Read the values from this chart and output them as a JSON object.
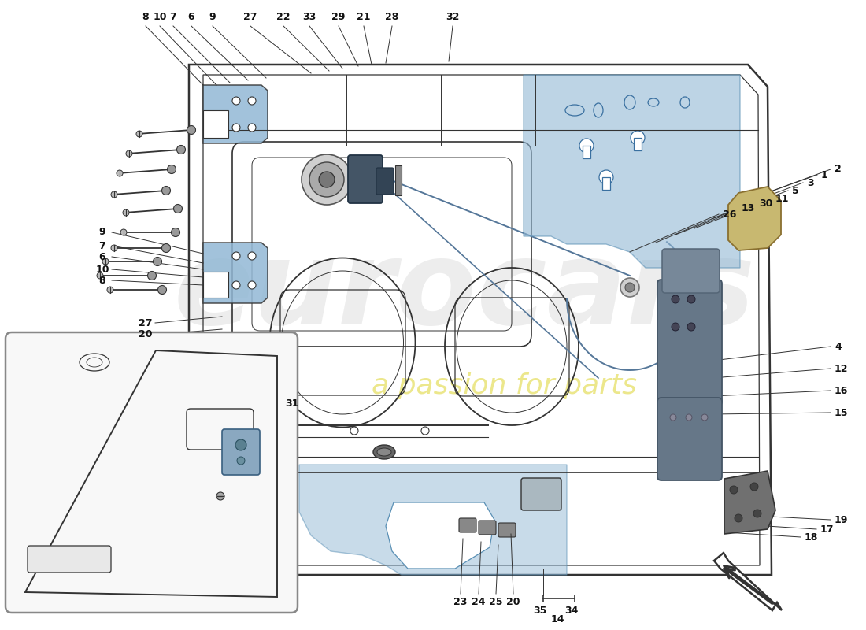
{
  "bg_color": "#ffffff",
  "blue_fill": "#92b8d5",
  "blue_fill2": "#a8c8e0",
  "door_lc": "#333333",
  "text_color": "#111111",
  "wm1": "eurocars",
  "wm2": "a passion for parts",
  "wm1_color": "#cccccc",
  "wm2_color": "#e0d840",
  "top_labels": [
    [
      "8",
      185,
      28,
      258,
      108
    ],
    [
      "10",
      203,
      28,
      275,
      108
    ],
    [
      "7",
      220,
      28,
      292,
      105
    ],
    [
      "6",
      243,
      28,
      315,
      102
    ],
    [
      "9",
      270,
      28,
      338,
      99
    ],
    [
      "27",
      318,
      28,
      395,
      93
    ],
    [
      "22",
      360,
      28,
      418,
      90
    ],
    [
      "33",
      393,
      28,
      435,
      87
    ],
    [
      "29",
      430,
      28,
      455,
      84
    ],
    [
      "21",
      462,
      28,
      472,
      82
    ],
    [
      "28",
      498,
      28,
      490,
      80
    ],
    [
      "32",
      575,
      28,
      570,
      78
    ]
  ],
  "right_labels": [
    [
      "2",
      1060,
      215,
      960,
      250
    ],
    [
      "1",
      1043,
      222,
      943,
      256
    ],
    [
      "3",
      1025,
      232,
      924,
      268
    ],
    [
      "5",
      1006,
      242,
      904,
      278
    ],
    [
      "11",
      985,
      252,
      882,
      290
    ],
    [
      "30",
      964,
      258,
      858,
      298
    ],
    [
      "13",
      942,
      264,
      833,
      308
    ],
    [
      "26",
      918,
      272,
      800,
      320
    ],
    [
      "4",
      1060,
      440,
      905,
      458
    ],
    [
      "12",
      1060,
      468,
      905,
      480
    ],
    [
      "16",
      1060,
      496,
      905,
      503
    ],
    [
      "15",
      1060,
      524,
      905,
      526
    ],
    [
      "19",
      1060,
      660,
      960,
      655
    ],
    [
      "17",
      1042,
      672,
      942,
      666
    ],
    [
      "18",
      1022,
      682,
      922,
      676
    ]
  ],
  "left_labels": [
    [
      "9",
      130,
      295,
      258,
      322
    ],
    [
      "7",
      130,
      312,
      258,
      334
    ],
    [
      "6",
      130,
      326,
      258,
      342
    ],
    [
      "10",
      130,
      342,
      258,
      352
    ],
    [
      "8",
      130,
      356,
      258,
      362
    ],
    [
      "27",
      185,
      410,
      282,
      402
    ],
    [
      "20",
      185,
      425,
      282,
      418
    ]
  ],
  "bot_labels": [
    [
      "23",
      585,
      758,
      588,
      684
    ],
    [
      "24",
      608,
      758,
      611,
      688
    ],
    [
      "25",
      630,
      758,
      633,
      692
    ],
    [
      "20",
      652,
      758,
      649,
      678
    ]
  ],
  "note_color": "#555555"
}
